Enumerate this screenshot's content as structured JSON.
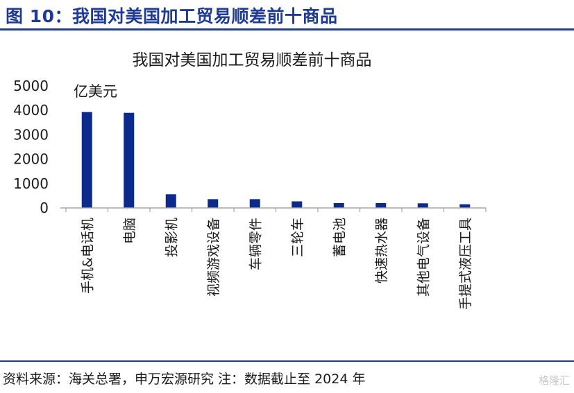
{
  "figure_title": "图 10：我国对美国加工贸易顺差前十商品",
  "footer_source": "资料来源：海关总署，申万宏源研究 注：数据截止至 2024 年",
  "watermark": "格隆汇",
  "colors": {
    "bar": "#0b2a8c",
    "accent": "#1f3a93",
    "axis": "#a6a6a6"
  },
  "chart_data": {
    "type": "bar",
    "title": "我国对美国加工贸易顺差前十商品",
    "unit_label": "亿美元",
    "categories": [
      "手机&电话机",
      "电脑",
      "投影机",
      "视频游戏设备",
      "车辆零件",
      "三轮车",
      "蓄电池",
      "快速热水器",
      "其他电气设备",
      "手提式液压工具"
    ],
    "values": [
      3930,
      3900,
      560,
      360,
      360,
      270,
      200,
      200,
      190,
      150
    ],
    "ylim": [
      0,
      5000
    ],
    "yticks": [
      0,
      1000,
      2000,
      3000,
      4000,
      5000
    ],
    "grid": false,
    "legend": "none"
  }
}
